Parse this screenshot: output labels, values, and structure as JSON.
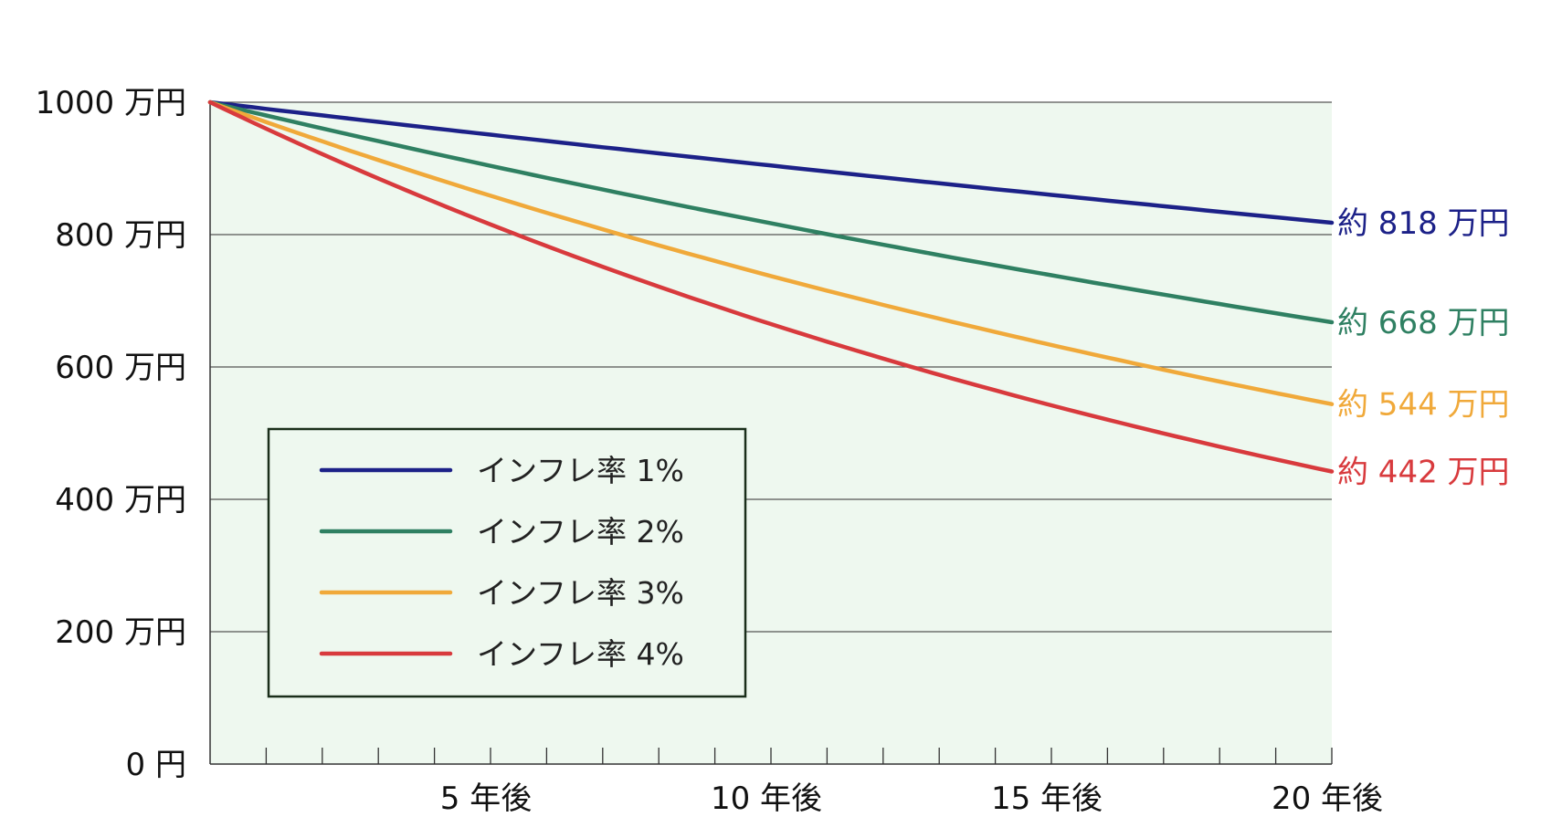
{
  "chart_data": {
    "type": "line",
    "x_ticks": [
      {
        "x": 5,
        "label": "5 年後"
      },
      {
        "x": 10,
        "label": "10 年後"
      },
      {
        "x": 15,
        "label": "15 年後"
      },
      {
        "x": 20,
        "label": "20 年後"
      }
    ],
    "xlim": [
      0,
      20
    ],
    "x_minor_step": 1,
    "y_ticks": [
      {
        "y": 0,
        "label": "0 円"
      },
      {
        "y": 200,
        "label": "200 万円"
      },
      {
        "y": 400,
        "label": "400 万円"
      },
      {
        "y": 600,
        "label": "600 万円"
      },
      {
        "y": 800,
        "label": "800 万円"
      },
      {
        "y": 1000,
        "label": "1000 万円"
      }
    ],
    "ylim": [
      0,
      1000
    ],
    "grid": true,
    "legend_position": "lower-left",
    "background_color": "#eef8ef",
    "series": [
      {
        "name": "インフレ率 1%",
        "rate": 0.01,
        "color": "#1c2188",
        "end_value": 818,
        "end_label": "約 818 万円"
      },
      {
        "name": "インフレ率 2%",
        "rate": 0.02,
        "color": "#2f8062",
        "end_value": 668,
        "end_label": "約 668 万円"
      },
      {
        "name": "インフレ率 3%",
        "rate": 0.03,
        "color": "#f0a93a",
        "end_value": 544,
        "end_label": "約 544 万円"
      },
      {
        "name": "インフレ率 4%",
        "rate": 0.04,
        "color": "#d83a3d",
        "end_value": 442,
        "end_label": "約 442 万円"
      }
    ]
  }
}
